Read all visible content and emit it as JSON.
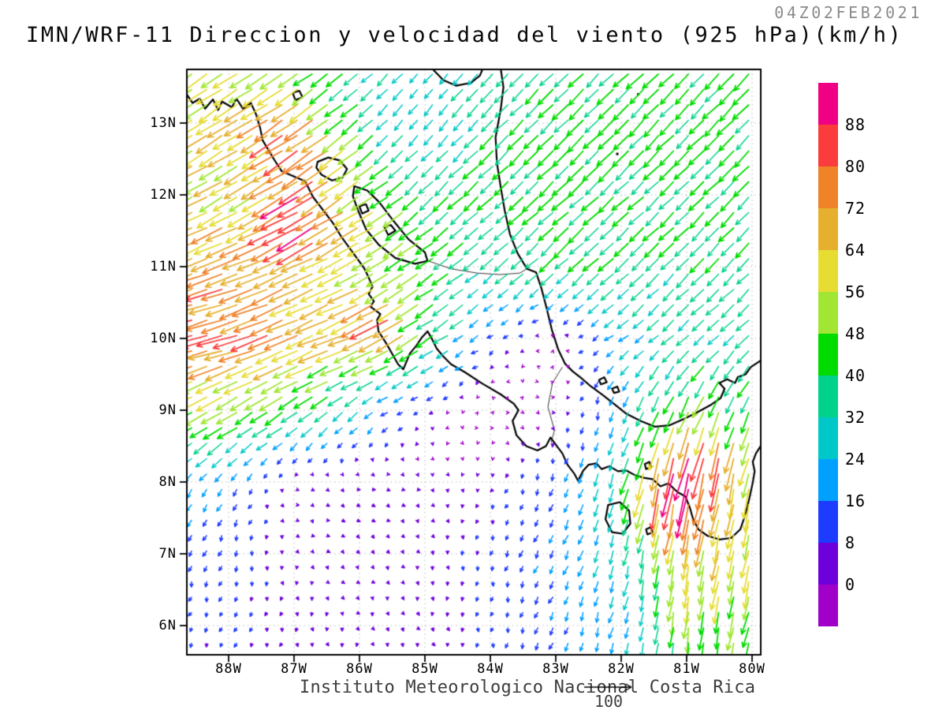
{
  "header": {
    "title": "IMN/WRF-11 Direccion y velocidad del viento (925 hPa)(km/h)",
    "timestamp": "04Z02FEB2021"
  },
  "footer": {
    "credit": "Instituto Meteorologico Nacional Costa Rica",
    "reference_value": "100"
  },
  "map": {
    "lat_ticks": [
      "13N",
      "12N",
      "11N",
      "10N",
      "9N",
      "8N",
      "7N",
      "6N"
    ],
    "lat_tick_deg": [
      13,
      12,
      11,
      10,
      9,
      8,
      7,
      6
    ],
    "lon_ticks": [
      "88W",
      "87W",
      "86W",
      "85W",
      "84W",
      "83W",
      "82W",
      "81W",
      "80W"
    ],
    "lon_tick_deg": [
      88,
      87,
      86,
      85,
      84,
      83,
      82,
      81,
      80
    ],
    "extent_degW_degN": {
      "lon_west": 88.64,
      "lon_east": 79.87,
      "lat_south": 5.59,
      "lat_north": 13.75
    },
    "frame_color": "#000000",
    "gridline_color": "#b8b8b8"
  },
  "colorbar": {
    "labels_top_to_bottom": [
      "88",
      "80",
      "72",
      "64",
      "56",
      "48",
      "40",
      "32",
      "24",
      "16",
      "8",
      "0"
    ],
    "colors_top_to_bottom": [
      "#F00082",
      "#FA3C3C",
      "#F08228",
      "#E6AF2D",
      "#E6DC32",
      "#A0E632",
      "#00DC00",
      "#00D28C",
      "#00C8C8",
      "#00A0FF",
      "#1E3CFF",
      "#6E00DC",
      "#A000C8"
    ],
    "units": "km/h"
  },
  "chart_data": {
    "type": "quiver",
    "title": "IMN/WRF-11 Direccion y velocidad del viento (925 hPa)(km/h)",
    "valid_time": "04Z02FEB2021",
    "pressure_level_hPa": 925,
    "units": "km/h",
    "reference_arrow_kmh": 100,
    "speed_levels_kmh": [
      0,
      8,
      16,
      24,
      32,
      40,
      48,
      56,
      64,
      72,
      80,
      88
    ],
    "lon_grid_degW": [
      89,
      88,
      87,
      86,
      85,
      84,
      83,
      82,
      81,
      80,
      79
    ],
    "lat_grid_degN": [
      14,
      13,
      12,
      11,
      10,
      9,
      8,
      7,
      6,
      5
    ],
    "u_kmh": [
      [
        -45,
        -45,
        -40,
        -22,
        -14,
        -22,
        -28,
        -30,
        -30,
        -30,
        -28
      ],
      [
        -52,
        -55,
        -48,
        -30,
        -16,
        -26,
        -30,
        -30,
        -30,
        -30,
        -28
      ],
      [
        -48,
        -52,
        -56,
        -45,
        -28,
        -28,
        -30,
        -30,
        -28,
        -28,
        -27
      ],
      [
        -62,
        -66,
        -64,
        -52,
        -38,
        -26,
        -28,
        -28,
        -26,
        -26,
        -25
      ],
      [
        -75,
        -78,
        -64,
        -56,
        -38,
        -10,
        -2,
        -18,
        -22,
        -26,
        -26
      ],
      [
        -42,
        -45,
        -36,
        -20,
        -6,
        2,
        4,
        -8,
        -20,
        -16,
        -14
      ],
      [
        -12,
        -10,
        3,
        7,
        5,
        -2,
        -5,
        -10,
        -16,
        -12,
        -8
      ],
      [
        -4,
        -4,
        3,
        5,
        2,
        -3,
        -8,
        -7,
        -10,
        -12,
        -8
      ],
      [
        -3,
        -4,
        -1,
        2,
        3,
        -1,
        -6,
        -6,
        -5,
        -12,
        -10
      ],
      [
        -3,
        -4,
        -2,
        2,
        3,
        -2,
        -6,
        -6,
        -5,
        -12,
        -10
      ]
    ],
    "v_kmh": [
      [
        -30,
        -30,
        -28,
        -20,
        -18,
        -24,
        -28,
        -30,
        -30,
        -30,
        -28
      ],
      [
        -34,
        -36,
        -32,
        -26,
        -20,
        -26,
        -30,
        -30,
        -30,
        -30,
        -28
      ],
      [
        -26,
        -30,
        -34,
        -30,
        -26,
        -26,
        -28,
        -28,
        -28,
        -28,
        -27
      ],
      [
        -24,
        -26,
        -30,
        -28,
        -26,
        -22,
        -26,
        -26,
        -26,
        -26,
        -25
      ],
      [
        -20,
        -22,
        -26,
        -24,
        -24,
        -8,
        3,
        -14,
        -20,
        -24,
        -25
      ],
      [
        -22,
        -26,
        -26,
        -16,
        -5,
        3,
        -2,
        -20,
        -45,
        -38,
        -32
      ],
      [
        -16,
        -14,
        -3,
        -2,
        -3,
        -6,
        -14,
        -30,
        -80,
        -55,
        -45
      ],
      [
        -12,
        -11,
        -5,
        -4,
        -6,
        -9,
        -16,
        -26,
        -60,
        -55,
        -44
      ],
      [
        -8,
        -8,
        -7,
        -6,
        -6,
        -8,
        -14,
        -22,
        -48,
        -46,
        -40
      ],
      [
        -7,
        -8,
        -7,
        -6,
        -6,
        -8,
        -14,
        -22,
        -44,
        -42,
        -38
      ]
    ],
    "speed_maxima": [
      {
        "lon_degW": 86.8,
        "lat_degN": 12.75,
        "amp": 0.35,
        "r_deg": 0.6
      },
      {
        "lon_degW": 86.7,
        "lat_degN": 11.7,
        "amp": 0.33,
        "r_deg": 0.5
      },
      {
        "lon_degW": 85.6,
        "lat_degN": 10.3,
        "amp": 0.5,
        "r_deg": 0.35
      },
      {
        "lon_degW": 81.35,
        "lat_degN": 8.15,
        "amp": 0.38,
        "r_deg": 0.6
      },
      {
        "lon_degW": 80.6,
        "lat_degN": 8.55,
        "amp": 0.22,
        "r_deg": 0.45
      }
    ]
  },
  "geography": {
    "coastlines": [
      {
        "name": "pacific-coast",
        "close": false,
        "points": [
          [
            88.64,
            13.4
          ],
          [
            88.55,
            13.28
          ],
          [
            88.44,
            13.34
          ],
          [
            88.36,
            13.2
          ],
          [
            88.24,
            13.33
          ],
          [
            88.16,
            13.18
          ],
          [
            88.1,
            13.3
          ],
          [
            87.95,
            13.22
          ],
          [
            87.88,
            13.34
          ],
          [
            87.78,
            13.2
          ],
          [
            87.66,
            13.28
          ],
          [
            87.58,
            13.12
          ],
          [
            87.52,
            12.94
          ],
          [
            87.48,
            12.76
          ],
          [
            87.31,
            12.5
          ],
          [
            87.19,
            12.33
          ],
          [
            86.83,
            12.19
          ],
          [
            86.71,
            11.97
          ],
          [
            86.55,
            11.78
          ],
          [
            86.4,
            11.6
          ],
          [
            86.28,
            11.42
          ],
          [
            86.04,
            11.12
          ],
          [
            85.93,
            10.98
          ],
          [
            85.87,
            10.87
          ],
          [
            85.8,
            10.72
          ],
          [
            85.86,
            10.62
          ],
          [
            85.78,
            10.52
          ],
          [
            85.83,
            10.44
          ],
          [
            85.68,
            10.34
          ],
          [
            85.73,
            10.26
          ],
          [
            85.71,
            10.1
          ],
          [
            85.59,
            9.93
          ],
          [
            85.49,
            9.77
          ],
          [
            85.41,
            9.64
          ],
          [
            85.33,
            9.57
          ],
          [
            85.28,
            9.68
          ],
          [
            85.23,
            9.79
          ],
          [
            85.13,
            9.9
          ],
          [
            85.05,
            10.01
          ],
          [
            84.96,
            10.1
          ],
          [
            84.89,
            9.99
          ],
          [
            84.82,
            9.86
          ],
          [
            84.72,
            9.75
          ],
          [
            84.6,
            9.64
          ],
          [
            84.39,
            9.53
          ],
          [
            84.12,
            9.37
          ],
          [
            83.84,
            9.22
          ],
          [
            83.64,
            9.09
          ],
          [
            83.57,
            9.0
          ],
          [
            83.66,
            8.85
          ],
          [
            83.6,
            8.65
          ],
          [
            83.45,
            8.5
          ],
          [
            83.28,
            8.44
          ],
          [
            83.15,
            8.5
          ],
          [
            83.08,
            8.62
          ],
          [
            83.0,
            8.52
          ],
          [
            82.9,
            8.4
          ],
          [
            82.82,
            8.24
          ],
          [
            82.72,
            8.12
          ],
          [
            82.66,
            8.02
          ],
          [
            82.58,
            8.16
          ],
          [
            82.5,
            8.24
          ],
          [
            82.38,
            8.26
          ],
          [
            82.3,
            8.18
          ],
          [
            82.18,
            8.22
          ],
          [
            82.05,
            8.15
          ],
          [
            81.92,
            8.16
          ],
          [
            81.8,
            8.1
          ],
          [
            81.66,
            8.06
          ],
          [
            81.52,
            8.04
          ],
          [
            81.4,
            7.94
          ],
          [
            81.28,
            7.98
          ],
          [
            81.14,
            7.86
          ],
          [
            81.02,
            7.8
          ],
          [
            80.95,
            7.64
          ],
          [
            80.9,
            7.48
          ],
          [
            80.82,
            7.34
          ],
          [
            80.68,
            7.25
          ],
          [
            80.5,
            7.2
          ],
          [
            80.32,
            7.22
          ],
          [
            80.18,
            7.34
          ],
          [
            80.12,
            7.5
          ],
          [
            80.07,
            7.66
          ],
          [
            80.03,
            7.82
          ],
          [
            79.99,
            7.99
          ],
          [
            79.96,
            8.15
          ],
          [
            79.99,
            8.28
          ],
          [
            79.94,
            8.4
          ],
          [
            79.87,
            8.5
          ]
        ]
      },
      {
        "name": "caribbean-coast",
        "close": false,
        "points": [
          [
            83.84,
            13.75
          ],
          [
            83.8,
            13.5
          ],
          [
            83.84,
            13.2
          ],
          [
            83.92,
            12.8
          ],
          [
            83.9,
            12.45
          ],
          [
            83.84,
            12.1
          ],
          [
            83.78,
            11.78
          ],
          [
            83.7,
            11.45
          ],
          [
            83.58,
            11.18
          ],
          [
            83.44,
            10.97
          ],
          [
            83.3,
            10.92
          ],
          [
            83.22,
            10.7
          ],
          [
            83.14,
            10.42
          ],
          [
            83.06,
            10.12
          ],
          [
            82.96,
            9.84
          ],
          [
            82.86,
            9.65
          ],
          [
            82.74,
            9.54
          ],
          [
            82.6,
            9.44
          ],
          [
            82.46,
            9.33
          ],
          [
            82.28,
            9.21
          ],
          [
            82.1,
            9.08
          ],
          [
            81.92,
            8.95
          ],
          [
            81.7,
            8.85
          ],
          [
            81.48,
            8.77
          ],
          [
            81.26,
            8.79
          ],
          [
            81.04,
            8.88
          ],
          [
            80.84,
            8.97
          ],
          [
            80.62,
            9.08
          ],
          [
            80.48,
            9.17
          ],
          [
            80.42,
            9.3
          ],
          [
            80.5,
            9.38
          ],
          [
            80.38,
            9.43
          ],
          [
            80.26,
            9.38
          ],
          [
            80.22,
            9.46
          ],
          [
            80.1,
            9.5
          ],
          [
            80.02,
            9.6
          ],
          [
            79.92,
            9.66
          ],
          [
            79.87,
            9.69
          ]
        ]
      },
      {
        "name": "mosquitia-lagoon-arc",
        "close": false,
        "points": [
          [
            84.88,
            13.75
          ],
          [
            84.72,
            13.6
          ],
          [
            84.52,
            13.52
          ],
          [
            84.3,
            13.56
          ],
          [
            84.16,
            13.66
          ],
          [
            84.12,
            13.75
          ]
        ]
      },
      {
        "name": "lake-managua",
        "close": true,
        "points": [
          [
            86.64,
            12.46
          ],
          [
            86.48,
            12.52
          ],
          [
            86.3,
            12.48
          ],
          [
            86.19,
            12.36
          ],
          [
            86.26,
            12.24
          ],
          [
            86.42,
            12.2
          ],
          [
            86.58,
            12.28
          ],
          [
            86.66,
            12.38
          ]
        ]
      },
      {
        "name": "lake-nicaragua",
        "close": true,
        "points": [
          [
            86.08,
            12.12
          ],
          [
            85.88,
            12.06
          ],
          [
            85.7,
            11.9
          ],
          [
            85.5,
            11.66
          ],
          [
            85.25,
            11.38
          ],
          [
            85.0,
            11.2
          ],
          [
            84.96,
            11.08
          ],
          [
            85.15,
            11.04
          ],
          [
            85.45,
            11.12
          ],
          [
            85.7,
            11.3
          ],
          [
            85.9,
            11.52
          ],
          [
            86.02,
            11.78
          ],
          [
            86.1,
            11.98
          ]
        ]
      },
      {
        "name": "ometepe-island",
        "close": true,
        "points": [
          [
            85.62,
            11.55
          ],
          [
            85.52,
            11.58
          ],
          [
            85.45,
            11.5
          ],
          [
            85.56,
            11.44
          ]
        ]
      },
      {
        "name": "zapatera-island",
        "close": true,
        "points": [
          [
            86.0,
            11.84
          ],
          [
            85.9,
            11.87
          ],
          [
            85.86,
            11.78
          ],
          [
            85.96,
            11.74
          ]
        ]
      },
      {
        "name": "fonseca-island",
        "close": true,
        "points": [
          [
            87.02,
            13.42
          ],
          [
            86.92,
            13.45
          ],
          [
            86.87,
            13.36
          ],
          [
            86.98,
            13.32
          ]
        ]
      },
      {
        "name": "coiba-island",
        "close": true,
        "points": [
          [
            82.2,
            7.68
          ],
          [
            82.02,
            7.72
          ],
          [
            81.88,
            7.6
          ],
          [
            81.86,
            7.42
          ],
          [
            81.98,
            7.28
          ],
          [
            82.14,
            7.3
          ],
          [
            82.24,
            7.48
          ]
        ]
      },
      {
        "name": "secas-islets",
        "close": true,
        "points": [
          [
            81.64,
            8.25
          ],
          [
            81.57,
            8.28
          ],
          [
            81.54,
            8.21
          ],
          [
            81.62,
            8.18
          ]
        ]
      },
      {
        "name": "coibita-islet",
        "close": true,
        "points": [
          [
            81.62,
            7.34
          ],
          [
            81.55,
            7.37
          ],
          [
            81.52,
            7.3
          ],
          [
            81.6,
            7.27
          ]
        ]
      },
      {
        "name": "bocas-islet-1",
        "close": true,
        "points": [
          [
            82.34,
            9.42
          ],
          [
            82.26,
            9.46
          ],
          [
            82.22,
            9.39
          ],
          [
            82.31,
            9.36
          ]
        ]
      },
      {
        "name": "bocas-islet-2",
        "close": true,
        "points": [
          [
            82.14,
            9.3
          ],
          [
            82.06,
            9.33
          ],
          [
            82.03,
            9.26
          ],
          [
            82.11,
            9.24
          ]
        ]
      }
    ],
    "thin_lines": [
      {
        "name": "rio-san-juan-border",
        "points": [
          [
            84.95,
            11.08
          ],
          [
            84.6,
            10.97
          ],
          [
            84.2,
            10.91
          ],
          [
            83.85,
            10.89
          ],
          [
            83.55,
            10.91
          ],
          [
            83.44,
            10.97
          ]
        ]
      },
      {
        "name": "cr-panama-border",
        "points": [
          [
            82.9,
            9.6
          ],
          [
            83.05,
            9.38
          ],
          [
            83.12,
            9.05
          ],
          [
            83.02,
            8.72
          ],
          [
            83.07,
            8.55
          ]
        ]
      }
    ],
    "island_dots": [
      {
        "name": "providencia-island",
        "lon_degW": 81.74,
        "lat_degN": 13.4
      },
      {
        "name": "san-andres-island",
        "lon_degW": 82.06,
        "lat_degN": 12.57
      }
    ]
  }
}
